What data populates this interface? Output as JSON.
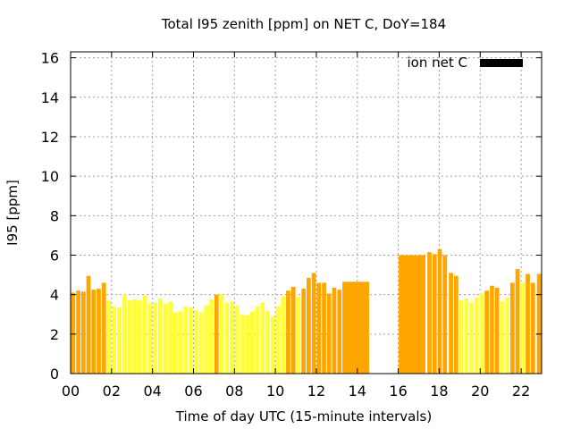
{
  "chart_data": {
    "type": "bar",
    "title": "Total I95 zenith [ppm] on NET C, DoY=184",
    "xlabel": "Time of day UTC (15-minute intervals)",
    "ylabel": "I95 [ppm]",
    "xlim": [
      0,
      23
    ],
    "ylim": [
      0,
      16.3
    ],
    "x_ticks": [
      "00",
      "02",
      "04",
      "06",
      "08",
      "10",
      "12",
      "14",
      "16",
      "18",
      "20",
      "22"
    ],
    "y_ticks": [
      "0",
      "2",
      "4",
      "6",
      "8",
      "10",
      "12",
      "14",
      "16"
    ],
    "grid": true,
    "legend_position": "top-right",
    "colors": {
      "low": "#ffff33",
      "high": "#ffa500",
      "legend": "#000000"
    },
    "series": [
      {
        "name": "ion net C",
        "legend_color": "#000000",
        "bars": [
          {
            "x": 0.0,
            "w": 0.25,
            "v": 4.1,
            "c": "high"
          },
          {
            "x": 0.25,
            "w": 0.25,
            "v": 4.2,
            "c": "high"
          },
          {
            "x": 0.5,
            "w": 0.25,
            "v": 4.15,
            "c": "high"
          },
          {
            "x": 0.75,
            "w": 0.25,
            "v": 4.95,
            "c": "high"
          },
          {
            "x": 1.0,
            "w": 0.25,
            "v": 4.25,
            "c": "high"
          },
          {
            "x": 1.25,
            "w": 0.25,
            "v": 4.3,
            "c": "high"
          },
          {
            "x": 1.5,
            "w": 0.25,
            "v": 4.6,
            "c": "high"
          },
          {
            "x": 1.75,
            "w": 0.25,
            "v": 3.7,
            "c": "low"
          },
          {
            "x": 2.0,
            "w": 0.25,
            "v": 3.4,
            "c": "low"
          },
          {
            "x": 2.25,
            "w": 0.25,
            "v": 3.35,
            "c": "low"
          },
          {
            "x": 2.5,
            "w": 0.25,
            "v": 4.0,
            "c": "low"
          },
          {
            "x": 2.75,
            "w": 0.25,
            "v": 3.7,
            "c": "low"
          },
          {
            "x": 3.0,
            "w": 0.25,
            "v": 3.75,
            "c": "low"
          },
          {
            "x": 3.25,
            "w": 0.25,
            "v": 3.7,
            "c": "low"
          },
          {
            "x": 3.5,
            "w": 0.25,
            "v": 3.95,
            "c": "low"
          },
          {
            "x": 3.75,
            "w": 0.25,
            "v": 3.55,
            "c": "low"
          },
          {
            "x": 4.0,
            "w": 0.25,
            "v": 3.6,
            "c": "low"
          },
          {
            "x": 4.25,
            "w": 0.25,
            "v": 3.8,
            "c": "low"
          },
          {
            "x": 4.5,
            "w": 0.25,
            "v": 3.55,
            "c": "low"
          },
          {
            "x": 4.75,
            "w": 0.25,
            "v": 3.65,
            "c": "low"
          },
          {
            "x": 5.0,
            "w": 0.25,
            "v": 3.1,
            "c": "low"
          },
          {
            "x": 5.25,
            "w": 0.25,
            "v": 3.15,
            "c": "low"
          },
          {
            "x": 5.5,
            "w": 0.25,
            "v": 3.4,
            "c": "low"
          },
          {
            "x": 5.75,
            "w": 0.25,
            "v": 3.35,
            "c": "low"
          },
          {
            "x": 6.0,
            "w": 0.25,
            "v": 3.2,
            "c": "low"
          },
          {
            "x": 6.25,
            "w": 0.25,
            "v": 3.1,
            "c": "low"
          },
          {
            "x": 6.5,
            "w": 0.25,
            "v": 3.45,
            "c": "low"
          },
          {
            "x": 6.75,
            "w": 0.25,
            "v": 3.75,
            "c": "low"
          },
          {
            "x": 7.0,
            "w": 0.25,
            "v": 4.0,
            "c": "high"
          },
          {
            "x": 7.25,
            "w": 0.25,
            "v": 4.0,
            "c": "low"
          },
          {
            "x": 7.5,
            "w": 0.25,
            "v": 3.6,
            "c": "low"
          },
          {
            "x": 7.75,
            "w": 0.25,
            "v": 3.65,
            "c": "low"
          },
          {
            "x": 8.0,
            "w": 0.25,
            "v": 3.45,
            "c": "low"
          },
          {
            "x": 8.25,
            "w": 0.25,
            "v": 3.0,
            "c": "low"
          },
          {
            "x": 8.5,
            "w": 0.25,
            "v": 2.95,
            "c": "low"
          },
          {
            "x": 8.75,
            "w": 0.25,
            "v": 3.15,
            "c": "low"
          },
          {
            "x": 9.0,
            "w": 0.25,
            "v": 3.4,
            "c": "low"
          },
          {
            "x": 9.25,
            "w": 0.25,
            "v": 3.6,
            "c": "low"
          },
          {
            "x": 9.5,
            "w": 0.25,
            "v": 3.2,
            "c": "low"
          },
          {
            "x": 9.75,
            "w": 0.25,
            "v": 2.9,
            "c": "low"
          },
          {
            "x": 10.0,
            "w": 0.25,
            "v": 3.4,
            "c": "low"
          },
          {
            "x": 10.25,
            "w": 0.25,
            "v": 3.9,
            "c": "low"
          },
          {
            "x": 10.5,
            "w": 0.25,
            "v": 4.2,
            "c": "high"
          },
          {
            "x": 10.75,
            "w": 0.25,
            "v": 4.4,
            "c": "high"
          },
          {
            "x": 11.0,
            "w": 0.25,
            "v": 3.9,
            "c": "low"
          },
          {
            "x": 11.25,
            "w": 0.25,
            "v": 4.3,
            "c": "high"
          },
          {
            "x": 11.5,
            "w": 0.25,
            "v": 4.85,
            "c": "high"
          },
          {
            "x": 11.75,
            "w": 0.25,
            "v": 5.1,
            "c": "high"
          },
          {
            "x": 12.0,
            "w": 0.25,
            "v": 4.6,
            "c": "high"
          },
          {
            "x": 12.25,
            "w": 0.25,
            "v": 4.6,
            "c": "high"
          },
          {
            "x": 12.5,
            "w": 0.25,
            "v": 4.05,
            "c": "high"
          },
          {
            "x": 12.75,
            "w": 0.25,
            "v": 4.35,
            "c": "high"
          },
          {
            "x": 13.0,
            "w": 0.25,
            "v": 4.25,
            "c": "high"
          },
          {
            "x": 13.25,
            "w": 1.35,
            "v": 4.65,
            "c": "high"
          },
          {
            "x": 16.0,
            "w": 1.35,
            "v": 6.0,
            "c": "high"
          },
          {
            "x": 17.4,
            "w": 0.25,
            "v": 6.15,
            "c": "high"
          },
          {
            "x": 17.65,
            "w": 0.25,
            "v": 6.05,
            "c": "high"
          },
          {
            "x": 17.9,
            "w": 0.25,
            "v": 6.3,
            "c": "high"
          },
          {
            "x": 18.15,
            "w": 0.25,
            "v": 6.0,
            "c": "high"
          },
          {
            "x": 18.45,
            "w": 0.25,
            "v": 5.1,
            "c": "high"
          },
          {
            "x": 18.7,
            "w": 0.25,
            "v": 4.95,
            "c": "high"
          },
          {
            "x": 18.95,
            "w": 0.25,
            "v": 3.7,
            "c": "low"
          },
          {
            "x": 19.2,
            "w": 0.25,
            "v": 3.8,
            "c": "low"
          },
          {
            "x": 19.45,
            "w": 0.25,
            "v": 3.6,
            "c": "low"
          },
          {
            "x": 19.7,
            "w": 0.25,
            "v": 3.85,
            "c": "low"
          },
          {
            "x": 19.95,
            "w": 0.25,
            "v": 4.05,
            "c": "low"
          },
          {
            "x": 20.2,
            "w": 0.25,
            "v": 4.2,
            "c": "high"
          },
          {
            "x": 20.45,
            "w": 0.25,
            "v": 4.45,
            "c": "high"
          },
          {
            "x": 20.7,
            "w": 0.25,
            "v": 4.35,
            "c": "high"
          },
          {
            "x": 20.95,
            "w": 0.25,
            "v": 3.65,
            "c": "low"
          },
          {
            "x": 21.2,
            "w": 0.25,
            "v": 3.85,
            "c": "low"
          },
          {
            "x": 21.45,
            "w": 0.25,
            "v": 4.6,
            "c": "high"
          },
          {
            "x": 21.7,
            "w": 0.25,
            "v": 5.3,
            "c": "high"
          },
          {
            "x": 21.95,
            "w": 0.25,
            "v": 4.6,
            "c": "low"
          },
          {
            "x": 22.2,
            "w": 0.25,
            "v": 5.05,
            "c": "high"
          },
          {
            "x": 22.45,
            "w": 0.25,
            "v": 4.6,
            "c": "high"
          },
          {
            "x": 22.75,
            "w": 0.25,
            "v": 5.05,
            "c": "high"
          }
        ]
      }
    ]
  }
}
